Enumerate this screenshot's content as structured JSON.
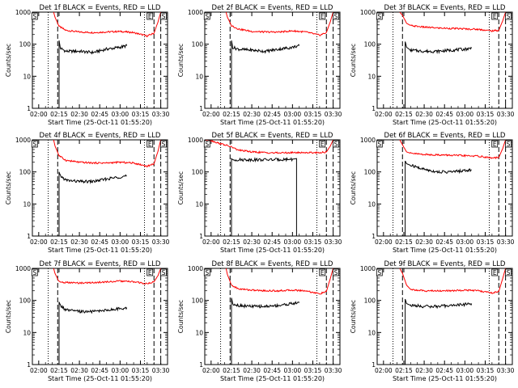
{
  "figure": {
    "xlabel": "Start Time (25-Oct-11 01:55:20)",
    "ylabel": "Counts/sec",
    "x_ticks": [
      "02:00",
      "02:15",
      "02:30",
      "02:45",
      "03:00",
      "03:15",
      "03:30"
    ],
    "y_ticks": [
      "1",
      "10",
      "100",
      "1000"
    ],
    "markers": {
      "left": "S",
      "right_mid": "E",
      "right": "S"
    },
    "colors": {
      "events": "#000000",
      "lld": "#ff0000"
    }
  },
  "chart_data": [
    {
      "type": "line",
      "title": "Det 1f BLACK = Events, RED = LLD",
      "xlim": [
        "01:55:20",
        "03:35:00"
      ],
      "ylim": [
        1,
        1000
      ],
      "yscale": "log",
      "series": [
        {
          "name": "LLD",
          "color": "#ff0000",
          "x": [
            "02:11",
            "02:12",
            "02:15",
            "02:20",
            "02:30",
            "02:40",
            "02:50",
            "03:00",
            "03:10",
            "03:20",
            "03:25",
            "03:28",
            "03:30"
          ],
          "y": [
            1000,
            700,
            360,
            270,
            240,
            230,
            240,
            250,
            230,
            180,
            220,
            500,
            1000
          ]
        },
        {
          "name": "Events",
          "color": "#000000",
          "x": [
            "02:15",
            "02:15",
            "02:16",
            "02:20",
            "02:30",
            "02:40",
            "02:50",
            "03:00",
            "03:05"
          ],
          "y": [
            1,
            130,
            75,
            60,
            60,
            55,
            70,
            80,
            90
          ]
        }
      ],
      "vlines_dotted": [
        "02:07",
        "03:18"
      ],
      "vlines_dashed": [
        "02:14",
        "03:25",
        "03:30"
      ]
    },
    {
      "type": "line",
      "title": "Det 2f BLACK = Events, RED = LLD",
      "xlim": [
        "01:55:20",
        "03:35:00"
      ],
      "ylim": [
        1,
        1000
      ],
      "yscale": "log",
      "series": [
        {
          "name": "LLD",
          "color": "#ff0000",
          "x": [
            "02:11",
            "02:12",
            "02:15",
            "02:20",
            "02:30",
            "02:40",
            "02:50",
            "03:00",
            "03:10",
            "03:20",
            "03:25",
            "03:28",
            "03:30"
          ],
          "y": [
            1000,
            700,
            380,
            300,
            250,
            240,
            240,
            260,
            240,
            190,
            230,
            520,
            1000
          ]
        },
        {
          "name": "Events",
          "color": "#000000",
          "x": [
            "02:15",
            "02:15",
            "02:16",
            "02:20",
            "02:30",
            "02:40",
            "02:50",
            "03:00",
            "03:05"
          ],
          "y": [
            1,
            130,
            80,
            70,
            65,
            60,
            70,
            80,
            90
          ]
        }
      ],
      "vlines_dotted": [
        "02:07",
        "03:18"
      ],
      "vlines_dashed": [
        "02:14",
        "03:25",
        "03:30"
      ]
    },
    {
      "type": "line",
      "title": "Det 3f BLACK = Events, RED = LLD",
      "xlim": [
        "01:55:20",
        "03:35:00"
      ],
      "ylim": [
        1,
        1000
      ],
      "yscale": "log",
      "series": [
        {
          "name": "LLD",
          "color": "#ff0000",
          "x": [
            "02:12",
            "02:14",
            "02:17",
            "02:20",
            "02:30",
            "02:40",
            "02:50",
            "03:00",
            "03:10",
            "03:20",
            "03:25",
            "03:28",
            "03:30"
          ],
          "y": [
            1000,
            800,
            450,
            380,
            340,
            320,
            310,
            300,
            290,
            260,
            270,
            550,
            1000
          ]
        },
        {
          "name": "Events",
          "color": "#000000",
          "x": [
            "02:16",
            "02:16",
            "02:17",
            "02:20",
            "02:30",
            "02:40",
            "02:50",
            "03:00",
            "03:05"
          ],
          "y": [
            1,
            120,
            80,
            65,
            60,
            60,
            65,
            70,
            75
          ]
        }
      ],
      "vlines_dotted": [
        "02:07",
        "03:18"
      ],
      "vlines_dashed": [
        "02:14",
        "03:25",
        "03:30"
      ]
    },
    {
      "type": "line",
      "title": "Det 4f BLACK = Events, RED = LLD",
      "xlim": [
        "01:55:20",
        "03:35:00"
      ],
      "ylim": [
        1,
        1000
      ],
      "yscale": "log",
      "series": [
        {
          "name": "LLD",
          "color": "#ff0000",
          "x": [
            "02:11",
            "02:12",
            "02:15",
            "02:20",
            "02:30",
            "02:40",
            "02:50",
            "03:00",
            "03:10",
            "03:20",
            "03:25",
            "03:28",
            "03:30"
          ],
          "y": [
            1000,
            650,
            320,
            230,
            200,
            190,
            190,
            200,
            190,
            150,
            180,
            450,
            1000
          ]
        },
        {
          "name": "Events",
          "color": "#000000",
          "x": [
            "02:15",
            "02:15",
            "02:16",
            "02:20",
            "02:30",
            "02:40",
            "02:50",
            "03:00",
            "03:05"
          ],
          "y": [
            1,
            100,
            75,
            55,
            50,
            50,
            60,
            70,
            75
          ]
        }
      ],
      "vlines_dotted": [
        "02:07",
        "03:18"
      ],
      "vlines_dashed": [
        "02:14",
        "03:25",
        "03:30"
      ]
    },
    {
      "type": "line",
      "title": "Det 5f BLACK = Events, RED = LLD",
      "xlim": [
        "01:55:20",
        "03:35:00"
      ],
      "ylim": [
        1,
        1000
      ],
      "yscale": "log",
      "series": [
        {
          "name": "LLD",
          "color": "#ff0000",
          "x": [
            "01:56",
            "02:00",
            "02:05",
            "02:10",
            "02:15",
            "02:20",
            "02:30",
            "02:40",
            "02:50",
            "03:00",
            "03:10",
            "03:20",
            "03:25",
            "03:28",
            "03:30"
          ],
          "y": [
            1000,
            950,
            800,
            700,
            600,
            480,
            420,
            400,
            390,
            400,
            400,
            400,
            420,
            650,
            1000
          ]
        },
        {
          "name": "Events",
          "color": "#000000",
          "x": [
            "02:15",
            "02:15",
            "02:16",
            "02:30",
            "02:45",
            "03:00",
            "03:03",
            "03:03"
          ],
          "y": [
            1,
            260,
            240,
            240,
            240,
            250,
            260,
            1
          ]
        }
      ],
      "vlines_dotted": [
        "02:07",
        "03:18"
      ],
      "vlines_dashed": [
        "02:14",
        "03:25",
        "03:30"
      ]
    },
    {
      "type": "line",
      "title": "Det 6f BLACK = Events, RED = LLD",
      "xlim": [
        "01:55:20",
        "03:35:00"
      ],
      "ylim": [
        1,
        1000
      ],
      "yscale": "log",
      "series": [
        {
          "name": "LLD",
          "color": "#ff0000",
          "x": [
            "02:12",
            "02:14",
            "02:17",
            "02:20",
            "02:30",
            "02:40",
            "02:50",
            "03:00",
            "03:10",
            "03:20",
            "03:25",
            "03:28",
            "03:30"
          ],
          "y": [
            1000,
            700,
            420,
            380,
            350,
            340,
            330,
            320,
            310,
            270,
            280,
            550,
            1000
          ]
        },
        {
          "name": "Events",
          "color": "#000000",
          "x": [
            "02:16",
            "02:16",
            "02:17",
            "02:20",
            "02:30",
            "02:40",
            "02:50",
            "03:00",
            "03:05"
          ],
          "y": [
            1,
            220,
            180,
            160,
            120,
            100,
            100,
            110,
            115
          ]
        }
      ],
      "vlines_dotted": [
        "02:07",
        "03:18"
      ],
      "vlines_dashed": [
        "02:14",
        "03:25",
        "03:30"
      ]
    },
    {
      "type": "line",
      "title": "Det 7f BLACK = Events, RED = LLD",
      "xlim": [
        "01:55:20",
        "03:35:00"
      ],
      "ylim": [
        1,
        1000
      ],
      "yscale": "log",
      "series": [
        {
          "name": "LLD",
          "color": "#ff0000",
          "x": [
            "02:11",
            "02:12",
            "02:15",
            "02:20",
            "02:30",
            "02:40",
            "02:50",
            "03:00",
            "03:10",
            "03:20",
            "03:25",
            "03:28",
            "03:30"
          ],
          "y": [
            1000,
            700,
            380,
            360,
            350,
            360,
            380,
            400,
            380,
            330,
            380,
            600,
            1000
          ]
        },
        {
          "name": "Events",
          "color": "#000000",
          "x": [
            "02:15",
            "02:15",
            "02:16",
            "02:20",
            "02:30",
            "02:40",
            "02:50",
            "03:00",
            "03:05"
          ],
          "y": [
            1,
            90,
            70,
            50,
            45,
            45,
            50,
            55,
            60
          ]
        }
      ],
      "vlines_dotted": [
        "02:07",
        "03:18"
      ],
      "vlines_dashed": [
        "02:14",
        "03:25",
        "03:30"
      ]
    },
    {
      "type": "line",
      "title": "Det 8f BLACK = Events, RED = LLD",
      "xlim": [
        "01:55:20",
        "03:35:00"
      ],
      "ylim": [
        1,
        1000
      ],
      "yscale": "log",
      "series": [
        {
          "name": "LLD",
          "color": "#ff0000",
          "x": [
            "02:11",
            "02:12",
            "02:15",
            "02:20",
            "02:30",
            "02:40",
            "02:50",
            "03:00",
            "03:10",
            "03:20",
            "03:25",
            "03:28",
            "03:30"
          ],
          "y": [
            1000,
            650,
            300,
            230,
            210,
            200,
            200,
            210,
            200,
            160,
            190,
            500,
            1000
          ]
        },
        {
          "name": "Events",
          "color": "#000000",
          "x": [
            "02:15",
            "02:15",
            "02:16",
            "02:20",
            "02:30",
            "02:40",
            "02:50",
            "03:00",
            "03:05"
          ],
          "y": [
            1,
            120,
            80,
            70,
            65,
            65,
            70,
            80,
            85
          ]
        }
      ],
      "vlines_dotted": [
        "02:07",
        "03:18"
      ],
      "vlines_dashed": [
        "02:14",
        "03:25",
        "03:30"
      ]
    },
    {
      "type": "line",
      "title": "Det 9f BLACK = Events, RED = LLD",
      "xlim": [
        "01:55:20",
        "03:35:00"
      ],
      "ylim": [
        1,
        1000
      ],
      "yscale": "log",
      "series": [
        {
          "name": "LLD",
          "color": "#ff0000",
          "x": [
            "02:12",
            "02:14",
            "02:17",
            "02:20",
            "02:30",
            "02:40",
            "02:50",
            "03:00",
            "03:10",
            "03:20",
            "03:25",
            "03:28",
            "03:30"
          ],
          "y": [
            1000,
            700,
            300,
            220,
            200,
            200,
            200,
            210,
            200,
            170,
            190,
            500,
            1000
          ]
        },
        {
          "name": "Events",
          "color": "#000000",
          "x": [
            "02:16",
            "02:16",
            "02:17",
            "02:20",
            "02:30",
            "02:40",
            "02:50",
            "03:00",
            "03:05"
          ],
          "y": [
            1,
            110,
            80,
            70,
            65,
            65,
            70,
            75,
            80
          ]
        }
      ],
      "vlines_dotted": [
        "02:07",
        "03:18"
      ],
      "vlines_dashed": [
        "02:14",
        "03:25",
        "03:30"
      ]
    }
  ]
}
